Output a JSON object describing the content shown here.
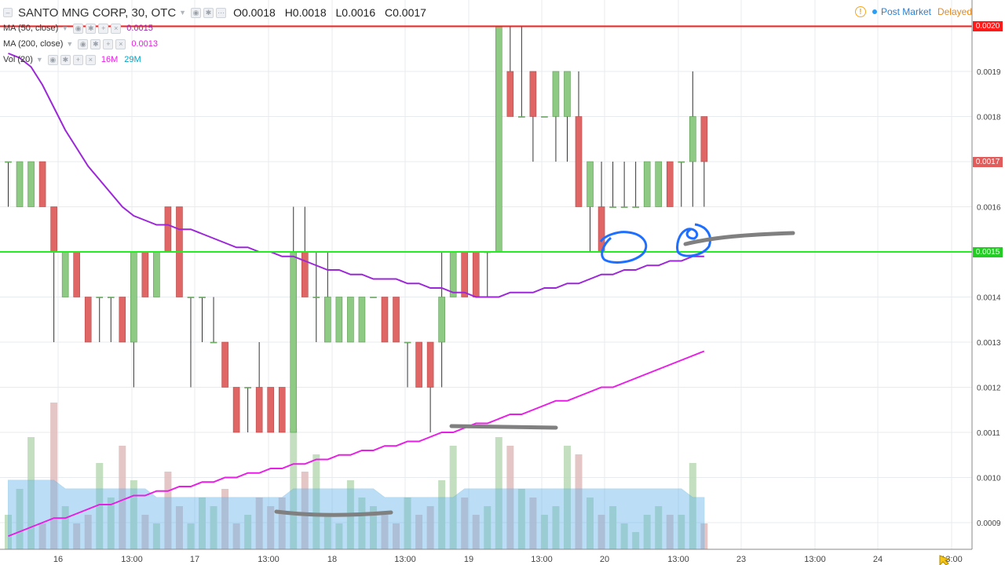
{
  "header": {
    "symbol": "SANTO MNG CORP, 30, OTC",
    "ohlc": {
      "open": "O0.0018",
      "high": "H0.0018",
      "low": "L0.0016",
      "close": "C0.0017"
    },
    "status_market": "Post Market",
    "status_delay": "Delayed"
  },
  "indicators": [
    {
      "label": "MA (50, close)",
      "value": "0.0015",
      "color": "#9c27b0"
    },
    {
      "label": "MA (200, close)",
      "value": "0.0013",
      "color": "#e91ee6"
    },
    {
      "label": "Vol (20)",
      "value1": "16M",
      "value2": "29M",
      "color1": "#e91ee6",
      "color2": "#00a3c4"
    }
  ],
  "chart_data": {
    "type": "candlestick",
    "title": "SANTO MNG CORP, 30, OTC",
    "ylim": [
      0.00085,
      0.00205
    ],
    "y_ticks": [
      "0.0009",
      "0.0010",
      "0.0011",
      "0.0012",
      "0.0013",
      "0.0014",
      "0.0015",
      "0.0016",
      "0.0017",
      "0.0018",
      "0.0019",
      "0.0020"
    ],
    "x_ticks": [
      "16",
      "13:00",
      "17",
      "13:00",
      "18",
      "13:00",
      "19",
      "13:00",
      "20",
      "13:00",
      "23",
      "13:00",
      "24",
      "13:00"
    ],
    "price_labels": [
      {
        "value": "0.0020",
        "color": "#ff1a1a"
      },
      {
        "value": "0.0017",
        "color": "#e25c5c"
      },
      {
        "value": "0.0015",
        "color": "#22cc22"
      }
    ],
    "horizontal_lines": [
      {
        "price": 0.002,
        "color": "#ff1a1a"
      },
      {
        "price": 0.0015,
        "color": "#22ee22"
      }
    ],
    "candles": [
      {
        "o": 0.0017,
        "h": 0.0017,
        "l": 0.0016,
        "c": 0.0017
      },
      {
        "o": 0.0016,
        "h": 0.0017,
        "l": 0.0016,
        "c": 0.0017
      },
      {
        "o": 0.0016,
        "h": 0.0017,
        "l": 0.0016,
        "c": 0.0017
      },
      {
        "o": 0.0017,
        "h": 0.0017,
        "l": 0.0016,
        "c": 0.0016
      },
      {
        "o": 0.0016,
        "h": 0.0016,
        "l": 0.0013,
        "c": 0.0015
      },
      {
        "o": 0.0014,
        "h": 0.0015,
        "l": 0.0014,
        "c": 0.0015
      },
      {
        "o": 0.0015,
        "h": 0.0015,
        "l": 0.0014,
        "c": 0.0014
      },
      {
        "o": 0.0014,
        "h": 0.0014,
        "l": 0.0013,
        "c": 0.0013
      },
      {
        "o": 0.0014,
        "h": 0.0014,
        "l": 0.0013,
        "c": 0.0014
      },
      {
        "o": 0.0014,
        "h": 0.0014,
        "l": 0.0013,
        "c": 0.0014
      },
      {
        "o": 0.0014,
        "h": 0.0014,
        "l": 0.0013,
        "c": 0.0013
      },
      {
        "o": 0.0013,
        "h": 0.0015,
        "l": 0.0012,
        "c": 0.0015
      },
      {
        "o": 0.0015,
        "h": 0.0015,
        "l": 0.0014,
        "c": 0.0014
      },
      {
        "o": 0.0014,
        "h": 0.0015,
        "l": 0.0014,
        "c": 0.0015
      },
      {
        "o": 0.0016,
        "h": 0.0016,
        "l": 0.0015,
        "c": 0.0015
      },
      {
        "o": 0.0016,
        "h": 0.0016,
        "l": 0.0014,
        "c": 0.0014
      },
      {
        "o": 0.0014,
        "h": 0.0014,
        "l": 0.0012,
        "c": 0.0014
      },
      {
        "o": 0.0014,
        "h": 0.0014,
        "l": 0.0013,
        "c": 0.0014
      },
      {
        "o": 0.0013,
        "h": 0.0014,
        "l": 0.0013,
        "c": 0.0013
      },
      {
        "o": 0.0013,
        "h": 0.0013,
        "l": 0.0012,
        "c": 0.0012
      },
      {
        "o": 0.0012,
        "h": 0.0012,
        "l": 0.0011,
        "c": 0.0011
      },
      {
        "o": 0.0012,
        "h": 0.0012,
        "l": 0.0011,
        "c": 0.0012
      },
      {
        "o": 0.0012,
        "h": 0.0013,
        "l": 0.0011,
        "c": 0.0011
      },
      {
        "o": 0.0012,
        "h": 0.0012,
        "l": 0.0011,
        "c": 0.0011
      },
      {
        "o": 0.0012,
        "h": 0.0012,
        "l": 0.0011,
        "c": 0.0011
      },
      {
        "o": 0.0011,
        "h": 0.0016,
        "l": 0.0011,
        "c": 0.0015
      },
      {
        "o": 0.0015,
        "h": 0.0016,
        "l": 0.0014,
        "c": 0.0014
      },
      {
        "o": 0.0014,
        "h": 0.0015,
        "l": 0.0013,
        "c": 0.0014
      },
      {
        "o": 0.0013,
        "h": 0.0015,
        "l": 0.0013,
        "c": 0.0014
      },
      {
        "o": 0.0013,
        "h": 0.0014,
        "l": 0.0013,
        "c": 0.0014
      },
      {
        "o": 0.0013,
        "h": 0.0014,
        "l": 0.0013,
        "c": 0.0014
      },
      {
        "o": 0.0013,
        "h": 0.0014,
        "l": 0.0013,
        "c": 0.0014
      },
      {
        "o": 0.0014,
        "h": 0.0014,
        "l": 0.0014,
        "c": 0.0014
      },
      {
        "o": 0.0014,
        "h": 0.0014,
        "l": 0.0013,
        "c": 0.0013
      },
      {
        "o": 0.0014,
        "h": 0.0014,
        "l": 0.0013,
        "c": 0.0013
      },
      {
        "o": 0.0013,
        "h": 0.0013,
        "l": 0.0012,
        "c": 0.0013
      },
      {
        "o": 0.0013,
        "h": 0.0013,
        "l": 0.0012,
        "c": 0.0012
      },
      {
        "o": 0.0013,
        "h": 0.0013,
        "l": 0.0011,
        "c": 0.0012
      },
      {
        "o": 0.0013,
        "h": 0.0015,
        "l": 0.0012,
        "c": 0.0014
      },
      {
        "o": 0.0014,
        "h": 0.0015,
        "l": 0.0014,
        "c": 0.0015
      },
      {
        "o": 0.0015,
        "h": 0.0015,
        "l": 0.0014,
        "c": 0.0014
      },
      {
        "o": 0.0015,
        "h": 0.0015,
        "l": 0.0014,
        "c": 0.0014
      },
      {
        "o": 0.0015,
        "h": 0.0015,
        "l": 0.0014,
        "c": 0.0015
      },
      {
        "o": 0.0015,
        "h": 0.002,
        "l": 0.0015,
        "c": 0.002
      },
      {
        "o": 0.0019,
        "h": 0.002,
        "l": 0.0018,
        "c": 0.0018
      },
      {
        "o": 0.0018,
        "h": 0.002,
        "l": 0.0018,
        "c": 0.0018
      },
      {
        "o": 0.0019,
        "h": 0.0019,
        "l": 0.0017,
        "c": 0.0018
      },
      {
        "o": 0.0018,
        "h": 0.0018,
        "l": 0.0018,
        "c": 0.0018
      },
      {
        "o": 0.0018,
        "h": 0.0019,
        "l": 0.0017,
        "c": 0.0019
      },
      {
        "o": 0.0018,
        "h": 0.0019,
        "l": 0.0017,
        "c": 0.0019
      },
      {
        "o": 0.0018,
        "h": 0.0019,
        "l": 0.0016,
        "c": 0.0016
      },
      {
        "o": 0.0016,
        "h": 0.0017,
        "l": 0.0015,
        "c": 0.0017
      },
      {
        "o": 0.0016,
        "h": 0.0017,
        "l": 0.0015,
        "c": 0.0015
      },
      {
        "o": 0.0016,
        "h": 0.0017,
        "l": 0.0016,
        "c": 0.0016
      },
      {
        "o": 0.0016,
        "h": 0.0017,
        "l": 0.0016,
        "c": 0.0016
      },
      {
        "o": 0.0016,
        "h": 0.0017,
        "l": 0.0016,
        "c": 0.0016
      },
      {
        "o": 0.0016,
        "h": 0.0017,
        "l": 0.0016,
        "c": 0.0017
      },
      {
        "o": 0.0016,
        "h": 0.0017,
        "l": 0.0016,
        "c": 0.0017
      },
      {
        "o": 0.0017,
        "h": 0.0017,
        "l": 0.0016,
        "c": 0.0016
      },
      {
        "o": 0.0017,
        "h": 0.0017,
        "l": 0.0016,
        "c": 0.0017
      },
      {
        "o": 0.0017,
        "h": 0.0019,
        "l": 0.0016,
        "c": 0.0018
      },
      {
        "o": 0.0018,
        "h": 0.0018,
        "l": 0.0016,
        "c": 0.0017
      }
    ],
    "ma50": [
      0.00194,
      0.00193,
      0.00191,
      0.00187,
      0.00182,
      0.00177,
      0.00173,
      0.00169,
      0.00166,
      0.00163,
      0.0016,
      0.00158,
      0.00157,
      0.00156,
      0.00156,
      0.00155,
      0.00155,
      0.00154,
      0.00153,
      0.00152,
      0.00151,
      0.00151,
      0.0015,
      0.0015,
      0.00149,
      0.00149,
      0.00148,
      0.00147,
      0.00146,
      0.00146,
      0.00145,
      0.00145,
      0.00144,
      0.00144,
      0.00144,
      0.00143,
      0.00143,
      0.00142,
      0.00142,
      0.00141,
      0.00141,
      0.0014,
      0.0014,
      0.0014,
      0.00141,
      0.00141,
      0.00141,
      0.00142,
      0.00142,
      0.00143,
      0.00143,
      0.00144,
      0.00145,
      0.00145,
      0.00146,
      0.00146,
      0.00147,
      0.00147,
      0.00148,
      0.00148,
      0.00149,
      0.00149
    ],
    "ma200": [
      0.00087,
      0.00088,
      0.00089,
      0.0009,
      0.00091,
      0.00091,
      0.00092,
      0.00093,
      0.00094,
      0.00094,
      0.00095,
      0.00096,
      0.00096,
      0.00097,
      0.00097,
      0.00098,
      0.00098,
      0.00099,
      0.00099,
      0.001,
      0.001,
      0.00101,
      0.00101,
      0.00102,
      0.00102,
      0.00103,
      0.00103,
      0.00104,
      0.00104,
      0.00105,
      0.00105,
      0.00106,
      0.00106,
      0.00107,
      0.00107,
      0.00108,
      0.00108,
      0.00109,
      0.0011,
      0.0011,
      0.00111,
      0.00112,
      0.00112,
      0.00113,
      0.00114,
      0.00114,
      0.00115,
      0.00116,
      0.00117,
      0.00117,
      0.00118,
      0.00119,
      0.0012,
      0.0012,
      0.00121,
      0.00122,
      0.00123,
      0.00124,
      0.00125,
      0.00126,
      0.00127,
      0.00128
    ],
    "volume": [
      4,
      7,
      13,
      3,
      17,
      5,
      3,
      4,
      10,
      6,
      12,
      8,
      4,
      3,
      9,
      5,
      3,
      6,
      5,
      7,
      3,
      4,
      6,
      5,
      6,
      14,
      9,
      11,
      4,
      3,
      8,
      6,
      5,
      4,
      3,
      6,
      4,
      5,
      8,
      12,
      6,
      4,
      5,
      13,
      12,
      7,
      6,
      4,
      5,
      12,
      11,
      6,
      4,
      5,
      3,
      2,
      4,
      5,
      4,
      4,
      10,
      3
    ],
    "volume_ma": [
      8,
      8,
      8,
      8,
      8,
      7,
      7,
      7,
      7,
      7,
      7,
      7,
      7,
      6,
      6,
      6,
      6,
      6,
      6,
      6,
      6,
      6,
      6,
      6,
      6,
      7,
      7,
      7,
      7,
      7,
      7,
      7,
      7,
      6,
      6,
      6,
      6,
      6,
      6,
      6,
      7,
      7,
      7,
      7,
      7,
      7,
      7,
      7,
      7,
      7,
      7,
      7,
      7,
      7,
      7,
      7,
      7,
      7,
      7,
      7,
      6,
      6
    ]
  }
}
